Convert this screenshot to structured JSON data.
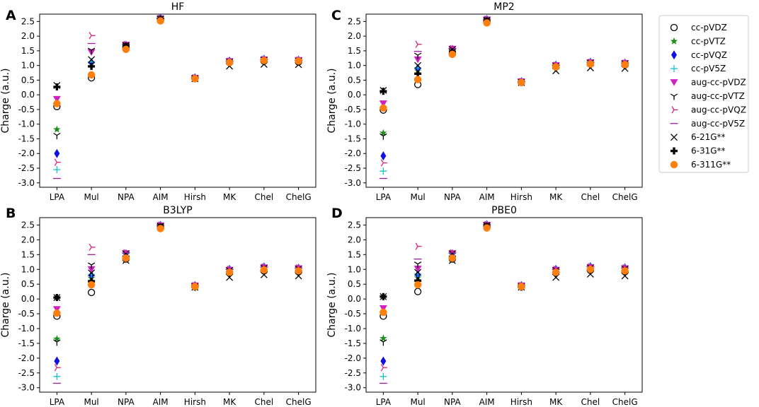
{
  "figure": {
    "categories": [
      "LPA",
      "Mul",
      "NPA",
      "AIM",
      "Hirsh",
      "MK",
      "Chel",
      "ChelG"
    ],
    "ylabel": "Charge (a.u.)",
    "ylim": [
      -3.15,
      2.75
    ],
    "yticks": [
      -3.0,
      -2.5,
      -2.0,
      -1.5,
      -1.0,
      -0.5,
      0.0,
      0.5,
      1.0,
      1.5,
      2.0,
      2.5
    ],
    "ytick_labels": [
      "-3.0",
      "-2.5",
      "-2.0",
      "-1.5",
      "-1.0",
      "-0.5",
      "0.0",
      "0.5",
      "1.0",
      "1.5",
      "2.0",
      "2.5"
    ]
  },
  "legend": {
    "items": [
      {
        "label": "cc-pVDZ",
        "marker": "circle-open-icon",
        "color": "#000000"
      },
      {
        "label": "cc-pVTZ",
        "marker": "star-icon",
        "color": "#1a8f1a"
      },
      {
        "label": "cc-pVQZ",
        "marker": "diamond-icon",
        "color": "#1010e0"
      },
      {
        "label": "cc-pV5Z",
        "marker": "plus-icon",
        "color": "#17becf"
      },
      {
        "label": "aug-cc-pVDZ",
        "marker": "triangle-down-icon",
        "color": "#d020c0"
      },
      {
        "label": "aug-cc-pVTZ",
        "marker": "tri-down-icon",
        "color": "#000000"
      },
      {
        "label": "aug-cc-pVQZ",
        "marker": "tri-right-icon",
        "color": "#e0207a"
      },
      {
        "label": "aug-cc-pV5Z",
        "marker": "hline-icon",
        "color": "#9a1a9a"
      },
      {
        "label": "6-21G**",
        "marker": "x-icon",
        "color": "#000000"
      },
      {
        "label": "6-31G**",
        "marker": "bold-plus-icon",
        "color": "#000000"
      },
      {
        "label": "6-311G**",
        "marker": "circle-filled-icon",
        "color": "#ff7f0e"
      }
    ]
  },
  "chart_data": [
    {
      "type": "scatter",
      "panel": "A",
      "title": "HF",
      "categories": [
        "LPA",
        "Mul",
        "NPA",
        "AIM",
        "Hirsh",
        "MK",
        "Chel",
        "ChelG"
      ],
      "ylabel": "Charge (a.u.)",
      "ylim": [
        -3.15,
        2.75
      ],
      "series": [
        {
          "name": "cc-pVDZ",
          "values": [
            -0.4,
            0.58,
            1.6,
            2.55,
            0.56,
            1.1,
            1.15,
            1.12
          ]
        },
        {
          "name": "cc-pVTZ",
          "values": [
            -1.18,
            1.05,
            1.68,
            2.6,
            0.57,
            1.14,
            1.2,
            1.17
          ]
        },
        {
          "name": "cc-pVQZ",
          "values": [
            -2.0,
            1.1,
            1.69,
            2.61,
            0.58,
            1.15,
            1.21,
            1.18
          ]
        },
        {
          "name": "cc-pV5Z",
          "values": [
            -2.55,
            1.12,
            1.7,
            2.61,
            0.58,
            1.15,
            1.21,
            1.18
          ]
        },
        {
          "name": "aug-cc-pVDZ",
          "values": [
            -0.15,
            1.45,
            1.7,
            2.6,
            0.57,
            1.14,
            1.2,
            1.18
          ]
        },
        {
          "name": "aug-cc-pVTZ",
          "values": [
            -1.38,
            1.52,
            1.71,
            2.61,
            0.57,
            1.15,
            1.21,
            1.18
          ]
        },
        {
          "name": "aug-cc-pVQZ",
          "values": [
            -2.3,
            2.02,
            1.72,
            2.61,
            0.58,
            1.15,
            1.21,
            1.18
          ]
        },
        {
          "name": "aug-cc-pV5Z",
          "values": [
            -2.85,
            1.75,
            1.72,
            2.61,
            0.58,
            1.15,
            1.21,
            1.18
          ]
        },
        {
          "name": "6-21G**",
          "values": [
            0.32,
            1.2,
            1.65,
            2.58,
            0.55,
            0.98,
            1.04,
            1.03
          ]
        },
        {
          "name": "6-31G**",
          "values": [
            0.27,
            0.97,
            1.66,
            2.58,
            0.55,
            1.08,
            1.14,
            1.12
          ]
        },
        {
          "name": "6-311G**",
          "values": [
            -0.3,
            0.68,
            1.55,
            2.52,
            0.55,
            1.1,
            1.17,
            1.15
          ]
        }
      ]
    },
    {
      "type": "scatter",
      "panel": "C",
      "title": "MP2",
      "categories": [
        "LPA",
        "Mul",
        "NPA",
        "AIM",
        "Hirsh",
        "MK",
        "Chel",
        "ChelG"
      ],
      "ylabel": "Charge (a.u.)",
      "ylim": [
        -3.15,
        2.75
      ],
      "series": [
        {
          "name": "cc-pVDZ",
          "values": [
            -0.52,
            0.35,
            1.4,
            2.5,
            0.42,
            0.95,
            1.05,
            1.02
          ]
        },
        {
          "name": "cc-pVTZ",
          "values": [
            -1.3,
            0.82,
            1.52,
            2.55,
            0.44,
            1.0,
            1.1,
            1.07
          ]
        },
        {
          "name": "cc-pVQZ",
          "values": [
            -2.08,
            0.9,
            1.55,
            2.57,
            0.45,
            1.01,
            1.11,
            1.08
          ]
        },
        {
          "name": "cc-pV5Z",
          "values": [
            -2.6,
            0.92,
            1.56,
            2.58,
            0.45,
            1.01,
            1.11,
            1.08
          ]
        },
        {
          "name": "aug-cc-pVDZ",
          "values": [
            -0.3,
            1.2,
            1.56,
            2.56,
            0.45,
            1.0,
            1.1,
            1.08
          ]
        },
        {
          "name": "aug-cc-pVTZ",
          "values": [
            -1.4,
            1.35,
            1.57,
            2.57,
            0.45,
            1.01,
            1.11,
            1.08
          ]
        },
        {
          "name": "aug-cc-pVQZ",
          "values": [
            -2.32,
            1.72,
            1.58,
            2.58,
            0.45,
            1.01,
            1.11,
            1.08
          ]
        },
        {
          "name": "aug-cc-pV5Z",
          "values": [
            -2.85,
            1.48,
            1.58,
            2.58,
            0.45,
            1.01,
            1.11,
            1.08
          ]
        },
        {
          "name": "6-21G**",
          "values": [
            0.15,
            1.0,
            1.45,
            2.52,
            0.42,
            0.82,
            0.92,
            0.9
          ]
        },
        {
          "name": "6-31G**",
          "values": [
            0.12,
            0.72,
            1.47,
            2.52,
            0.42,
            0.92,
            1.02,
            1.0
          ]
        },
        {
          "name": "6-311G**",
          "values": [
            -0.45,
            0.52,
            1.38,
            2.45,
            0.42,
            0.95,
            1.05,
            1.03
          ]
        }
      ]
    },
    {
      "type": "scatter",
      "panel": "B",
      "title": "B3LYP",
      "categories": [
        "LPA",
        "Mul",
        "NPA",
        "AIM",
        "Hirsh",
        "MK",
        "Chel",
        "ChelG"
      ],
      "ylabel": "Charge (a.u.)",
      "ylim": [
        -3.15,
        2.75
      ],
      "series": [
        {
          "name": "cc-pVDZ",
          "values": [
            -0.58,
            0.22,
            1.35,
            2.4,
            0.42,
            0.9,
            0.95,
            0.92
          ]
        },
        {
          "name": "cc-pVTZ",
          "values": [
            -1.35,
            0.7,
            1.5,
            2.47,
            0.44,
            0.98,
            1.05,
            1.02
          ]
        },
        {
          "name": "cc-pVQZ",
          "values": [
            -2.1,
            0.8,
            1.53,
            2.49,
            0.45,
            1.0,
            1.08,
            1.04
          ]
        },
        {
          "name": "cc-pV5Z",
          "values": [
            -2.62,
            0.83,
            1.54,
            2.5,
            0.45,
            1.0,
            1.08,
            1.04
          ]
        },
        {
          "name": "aug-cc-pVDZ",
          "values": [
            -0.35,
            1.0,
            1.54,
            2.48,
            0.45,
            0.98,
            1.06,
            1.03
          ]
        },
        {
          "name": "aug-cc-pVTZ",
          "values": [
            -1.45,
            1.15,
            1.55,
            2.49,
            0.45,
            0.99,
            1.07,
            1.04
          ]
        },
        {
          "name": "aug-cc-pVQZ",
          "values": [
            -2.32,
            1.75,
            1.56,
            2.5,
            0.45,
            1.0,
            1.08,
            1.05
          ]
        },
        {
          "name": "aug-cc-pV5Z",
          "values": [
            -2.85,
            1.5,
            1.56,
            2.5,
            0.45,
            1.0,
            1.08,
            1.05
          ]
        },
        {
          "name": "6-21G**",
          "values": [
            0.05,
            0.88,
            1.3,
            2.44,
            0.4,
            0.73,
            0.82,
            0.78
          ]
        },
        {
          "name": "6-31G**",
          "values": [
            0.05,
            0.6,
            1.43,
            2.44,
            0.4,
            0.86,
            0.95,
            0.92
          ]
        },
        {
          "name": "6-311G**",
          "values": [
            -0.48,
            0.48,
            1.38,
            2.38,
            0.42,
            0.9,
            0.98,
            0.95
          ]
        }
      ]
    },
    {
      "type": "scatter",
      "panel": "D",
      "title": "PBE0",
      "categories": [
        "LPA",
        "Mul",
        "NPA",
        "AIM",
        "Hirsh",
        "MK",
        "Chel",
        "ChelG"
      ],
      "ylabel": "Charge (a.u.)",
      "ylim": [
        -3.15,
        2.75
      ],
      "series": [
        {
          "name": "cc-pVDZ",
          "values": [
            -0.58,
            0.25,
            1.35,
            2.42,
            0.42,
            0.9,
            0.97,
            0.92
          ]
        },
        {
          "name": "cc-pVTZ",
          "values": [
            -1.33,
            0.72,
            1.5,
            2.48,
            0.44,
            0.98,
            1.06,
            1.02
          ]
        },
        {
          "name": "cc-pVQZ",
          "values": [
            -2.1,
            0.82,
            1.53,
            2.51,
            0.45,
            1.0,
            1.09,
            1.05
          ]
        },
        {
          "name": "cc-pV5Z",
          "values": [
            -2.62,
            0.85,
            1.54,
            2.52,
            0.45,
            1.0,
            1.09,
            1.05
          ]
        },
        {
          "name": "aug-cc-pVDZ",
          "values": [
            -0.32,
            1.02,
            1.54,
            2.5,
            0.45,
            0.98,
            1.07,
            1.03
          ]
        },
        {
          "name": "aug-cc-pVTZ",
          "values": [
            -1.45,
            1.18,
            1.55,
            2.51,
            0.45,
            0.99,
            1.08,
            1.04
          ]
        },
        {
          "name": "aug-cc-pVQZ",
          "values": [
            -2.32,
            1.78,
            1.56,
            2.52,
            0.45,
            1.0,
            1.09,
            1.05
          ]
        },
        {
          "name": "aug-cc-pV5Z",
          "values": [
            -2.85,
            1.35,
            1.56,
            2.52,
            0.45,
            1.0,
            1.09,
            1.05
          ]
        },
        {
          "name": "6-21G**",
          "values": [
            0.08,
            0.9,
            1.3,
            2.46,
            0.4,
            0.73,
            0.84,
            0.78
          ]
        },
        {
          "name": "6-31G**",
          "values": [
            0.08,
            0.62,
            1.43,
            2.46,
            0.4,
            0.86,
            0.97,
            0.92
          ]
        },
        {
          "name": "6-311G**",
          "values": [
            -0.45,
            0.48,
            1.38,
            2.4,
            0.42,
            0.9,
            1.0,
            0.95
          ]
        }
      ]
    }
  ]
}
